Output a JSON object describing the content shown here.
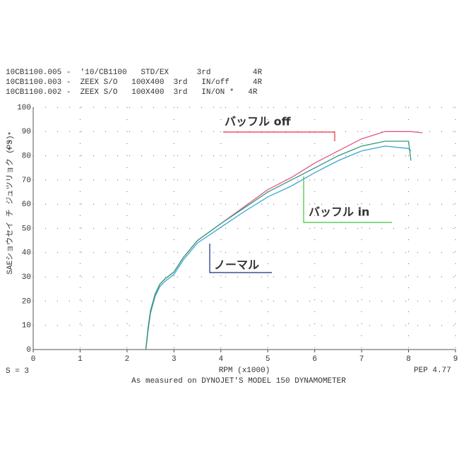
{
  "chart_data": {
    "type": "line",
    "series": [
      {
        "name": "10CB1100.005 -  '10/CB1100   STD/EX      3rd         4R",
        "color": "#3aa6d6",
        "values": [
          0,
          8,
          15,
          22,
          26,
          28,
          31,
          37,
          44,
          50.5,
          57,
          63,
          67.5,
          73,
          78,
          82,
          84,
          83,
          82,
          null
        ]
      },
      {
        "name": "10CB1100.003 -  ZEEX S/O   100X400  3rd   IN/off     4R",
        "color": "#e0578a",
        "values": [
          0,
          9,
          16,
          23,
          27,
          29,
          32,
          38,
          45,
          52,
          59,
          66,
          71,
          77,
          82,
          87,
          90,
          90,
          90,
          89.5
        ]
      },
      {
        "name": "10CB1100.002 -  ZEEX S/O   100X400  3rd   IN/ON *   4R",
        "color": "#2e9a78",
        "values": [
          0,
          9,
          16,
          23,
          27,
          29,
          32,
          38,
          45,
          52,
          58.5,
          65,
          70,
          75,
          80,
          84,
          86,
          86,
          78,
          null
        ]
      }
    ],
    "x": [
      2.4,
      2.45,
      2.5,
      2.6,
      2.7,
      2.8,
      3.0,
      3.2,
      3.5,
      4.0,
      4.5,
      5.0,
      5.5,
      6.0,
      6.5,
      7.0,
      7.5,
      8.0,
      8.05,
      8.3
    ],
    "xlim": [
      0,
      9
    ],
    "xticks": [
      0,
      1,
      2,
      3,
      4,
      5,
      6,
      7,
      8,
      9
    ],
    "ylim": [
      0,
      100
    ],
    "yticks": [
      0,
      10,
      20,
      30,
      40,
      50,
      60,
      70,
      80,
      90,
      100
    ],
    "grid": true,
    "marker_text": "*",
    "y_label": "SAEショウセイ チ ジュツリョク (PS)",
    "x_label": "RPM (x1000)",
    "smoothing": "S = 3",
    "version": "PEP 4.77",
    "footnote": "As measured on DYNOJET'S MODEL 150 DYNAMOMETER",
    "annotations": [
      {
        "text": "バッフル off",
        "color": "#e8303a"
      },
      {
        "text": "バッフル in",
        "color": "#3cc43c"
      },
      {
        "text": "ノーマル",
        "color": "#1a2a7a"
      }
    ]
  }
}
